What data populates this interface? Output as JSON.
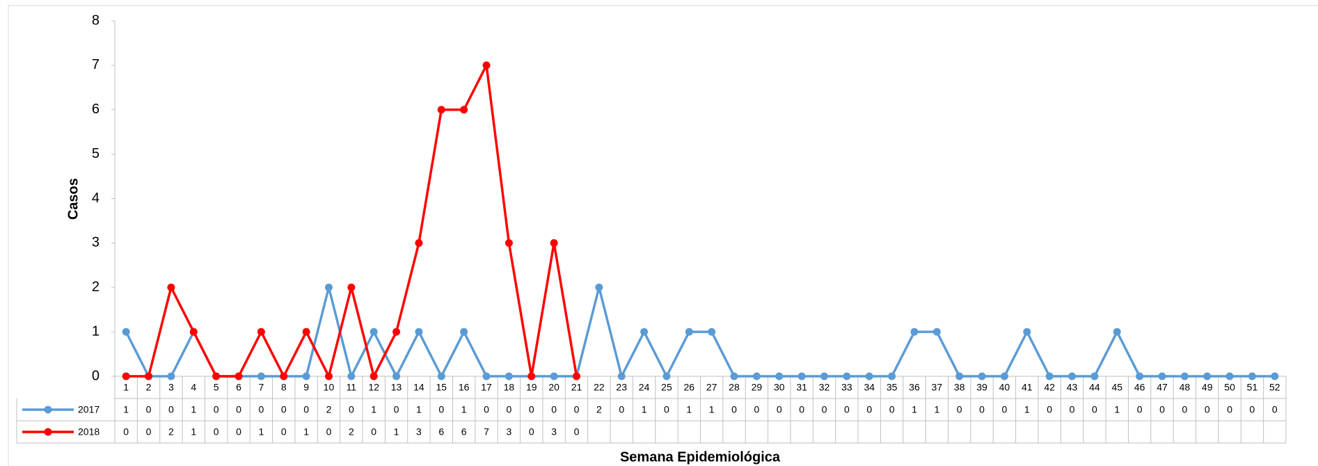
{
  "chart_data": {
    "type": "line",
    "ylabel": "Casos",
    "xlabel": "Semana Epidemiológica",
    "categories": [
      "1",
      "2",
      "3",
      "4",
      "5",
      "6",
      "7",
      "8",
      "9",
      "10",
      "11",
      "12",
      "13",
      "14",
      "15",
      "16",
      "17",
      "18",
      "19",
      "20",
      "21",
      "22",
      "23",
      "24",
      "25",
      "26",
      "27",
      "28",
      "29",
      "30",
      "31",
      "32",
      "33",
      "34",
      "35",
      "36",
      "37",
      "38",
      "39",
      "40",
      "41",
      "42",
      "43",
      "44",
      "45",
      "46",
      "47",
      "48",
      "49",
      "50",
      "51",
      "52"
    ],
    "series": [
      {
        "name": "2017",
        "color": "#5b9bd5",
        "values": [
          1,
          0,
          0,
          1,
          0,
          0,
          0,
          0,
          0,
          2,
          0,
          1,
          0,
          1,
          0,
          1,
          0,
          0,
          0,
          0,
          0,
          2,
          0,
          1,
          0,
          1,
          1,
          0,
          0,
          0,
          0,
          0,
          0,
          0,
          0,
          1,
          1,
          0,
          0,
          0,
          1,
          0,
          0,
          0,
          1,
          0,
          0,
          0,
          0,
          0,
          0,
          0
        ]
      },
      {
        "name": "2018",
        "color": "#ff0000",
        "values": [
          0,
          0,
          2,
          1,
          0,
          0,
          1,
          0,
          1,
          0,
          2,
          0,
          1,
          3,
          6,
          6,
          7,
          3,
          0,
          3,
          0,
          null,
          null,
          null,
          null,
          null,
          null,
          null,
          null,
          null,
          null,
          null,
          null,
          null,
          null,
          null,
          null,
          null,
          null,
          null,
          null,
          null,
          null,
          null,
          null,
          null,
          null,
          null,
          null,
          null,
          null,
          null
        ]
      }
    ],
    "ylim": [
      0,
      8
    ],
    "yticks": [
      0,
      1,
      2,
      3,
      4,
      5,
      6,
      7,
      8
    ]
  }
}
